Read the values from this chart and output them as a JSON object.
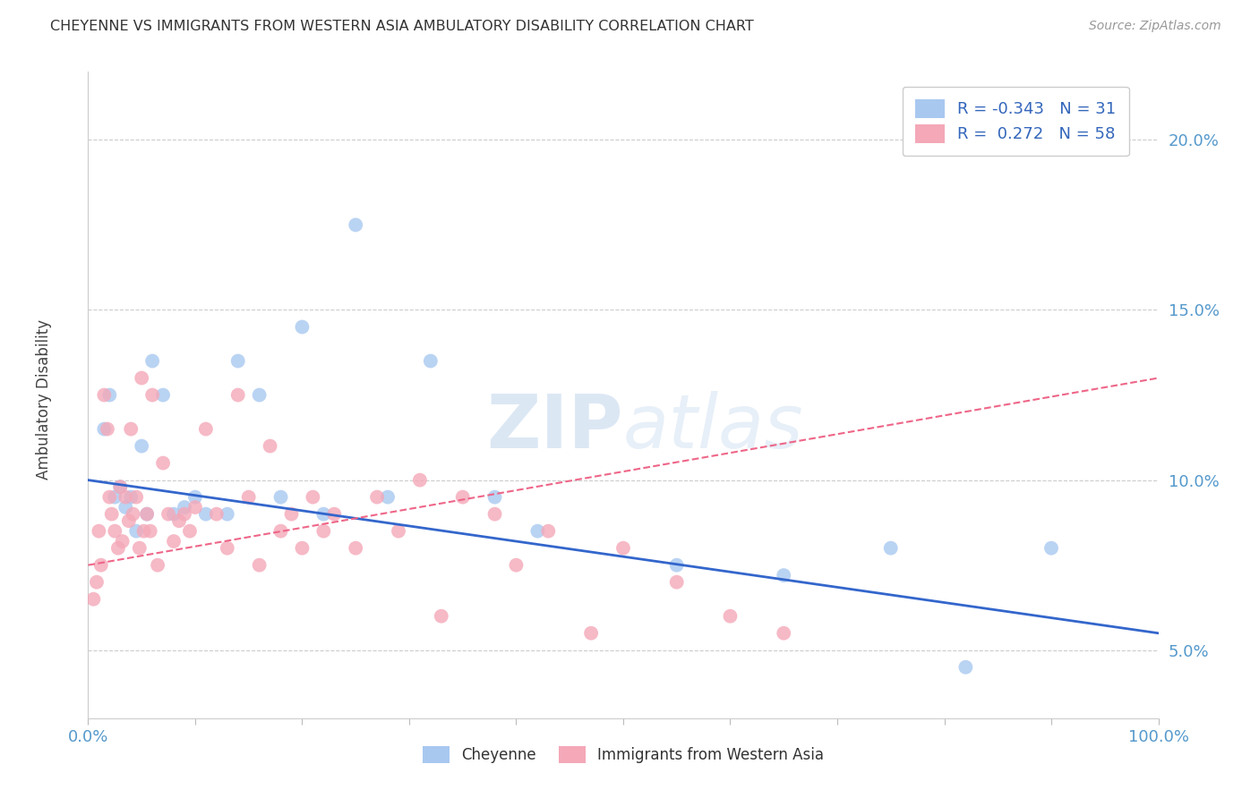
{
  "title": "CHEYENNE VS IMMIGRANTS FROM WESTERN ASIA AMBULATORY DISABILITY CORRELATION CHART",
  "source": "Source: ZipAtlas.com",
  "ylabel": "Ambulatory Disability",
  "xlabel": "",
  "xlim": [
    0,
    100
  ],
  "ylim": [
    3.0,
    22.0
  ],
  "yticks": [
    5.0,
    10.0,
    15.0,
    20.0
  ],
  "ytick_labels": [
    "5.0%",
    "10.0%",
    "15.0%",
    "20.0%"
  ],
  "xtick_labels": [
    "0.0%",
    "100.0%"
  ],
  "blue_color": "#A8C8F0",
  "pink_color": "#F4A8B8",
  "blue_line_color": "#3366CC",
  "pink_line_color": "#EE6688",
  "legend_R1": "-0.343",
  "legend_N1": "31",
  "legend_R2": "0.272",
  "legend_N2": "58",
  "blue_trend_start": 10.0,
  "blue_trend_end": 5.5,
  "pink_trend_start": 7.5,
  "pink_trend_end": 13.0,
  "blue_x": [
    1.5,
    2.0,
    2.5,
    3.0,
    3.5,
    4.0,
    4.5,
    5.0,
    5.5,
    6.0,
    7.0,
    8.0,
    9.0,
    10.0,
    11.0,
    14.0,
    16.0,
    20.0,
    25.0,
    28.0,
    32.0,
    38.0,
    42.0,
    55.0,
    65.0,
    75.0,
    82.0,
    90.0,
    13.0,
    18.0,
    22.0
  ],
  "blue_y": [
    11.5,
    12.5,
    9.5,
    9.8,
    9.2,
    9.5,
    8.5,
    11.0,
    9.0,
    13.5,
    12.5,
    9.0,
    9.2,
    9.5,
    9.0,
    13.5,
    12.5,
    14.5,
    17.5,
    9.5,
    13.5,
    9.5,
    8.5,
    7.5,
    7.2,
    8.0,
    4.5,
    8.0,
    9.0,
    9.5,
    9.0
  ],
  "pink_x": [
    0.5,
    0.8,
    1.0,
    1.2,
    1.5,
    1.8,
    2.0,
    2.2,
    2.5,
    2.8,
    3.0,
    3.2,
    3.5,
    3.8,
    4.0,
    4.2,
    4.5,
    4.8,
    5.0,
    5.2,
    5.5,
    5.8,
    6.0,
    6.5,
    7.0,
    7.5,
    8.0,
    8.5,
    9.0,
    9.5,
    10.0,
    11.0,
    12.0,
    13.0,
    14.0,
    15.0,
    16.0,
    17.0,
    18.0,
    19.0,
    20.0,
    21.0,
    22.0,
    23.0,
    25.0,
    27.0,
    29.0,
    31.0,
    33.0,
    35.0,
    38.0,
    40.0,
    43.0,
    47.0,
    50.0,
    55.0,
    60.0,
    65.0
  ],
  "pink_y": [
    6.5,
    7.0,
    8.5,
    7.5,
    12.5,
    11.5,
    9.5,
    9.0,
    8.5,
    8.0,
    9.8,
    8.2,
    9.5,
    8.8,
    11.5,
    9.0,
    9.5,
    8.0,
    13.0,
    8.5,
    9.0,
    8.5,
    12.5,
    7.5,
    10.5,
    9.0,
    8.2,
    8.8,
    9.0,
    8.5,
    9.2,
    11.5,
    9.0,
    8.0,
    12.5,
    9.5,
    7.5,
    11.0,
    8.5,
    9.0,
    8.0,
    9.5,
    8.5,
    9.0,
    8.0,
    9.5,
    8.5,
    10.0,
    6.0,
    9.5,
    9.0,
    7.5,
    8.5,
    5.5,
    8.0,
    7.0,
    6.0,
    5.5
  ],
  "watermark_zip": "ZIP",
  "watermark_atlas": "atlas",
  "background_color": "#FFFFFF",
  "grid_color": "#CCCCCC"
}
